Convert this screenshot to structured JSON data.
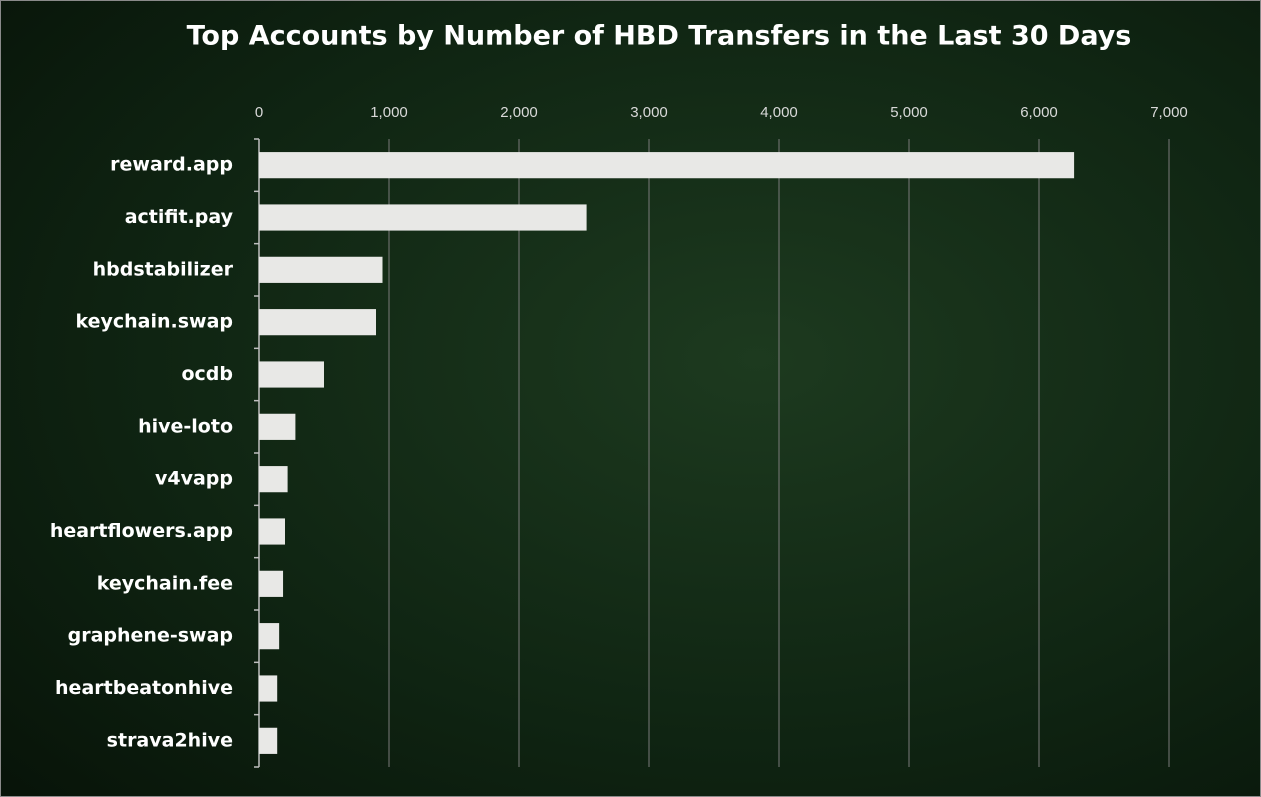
{
  "chart_data": {
    "type": "bar",
    "orientation": "horizontal",
    "title": "Top Accounts by Number of HBD Transfers in the Last 30 Days",
    "categories": [
      "reward.app",
      "actifit.pay",
      "hbdstabilizer",
      "keychain.swap",
      "ocdb",
      "hive-loto",
      "v4vapp",
      "heartflowers.app",
      "keychain.fee",
      "graphene-swap",
      "heartbeatonhive",
      "strava2hive"
    ],
    "values": [
      6270,
      2520,
      950,
      900,
      500,
      280,
      220,
      200,
      185,
      155,
      140,
      140
    ],
    "color": "#e8e8e6",
    "xlim": [
      0,
      7000
    ],
    "xticks": [
      0,
      {
        "value": 1000,
        "label": "1,000"
      },
      {
        "value": 2000,
        "label": "2,000"
      },
      {
        "value": 3000,
        "label": "3,000"
      },
      {
        "value": 4000,
        "label": "4,000"
      },
      {
        "value": 5000,
        "label": "5,000"
      },
      {
        "value": 6000,
        "label": "6,000"
      },
      {
        "value": 7000,
        "label": "7,000"
      }
    ],
    "grid": true
  }
}
